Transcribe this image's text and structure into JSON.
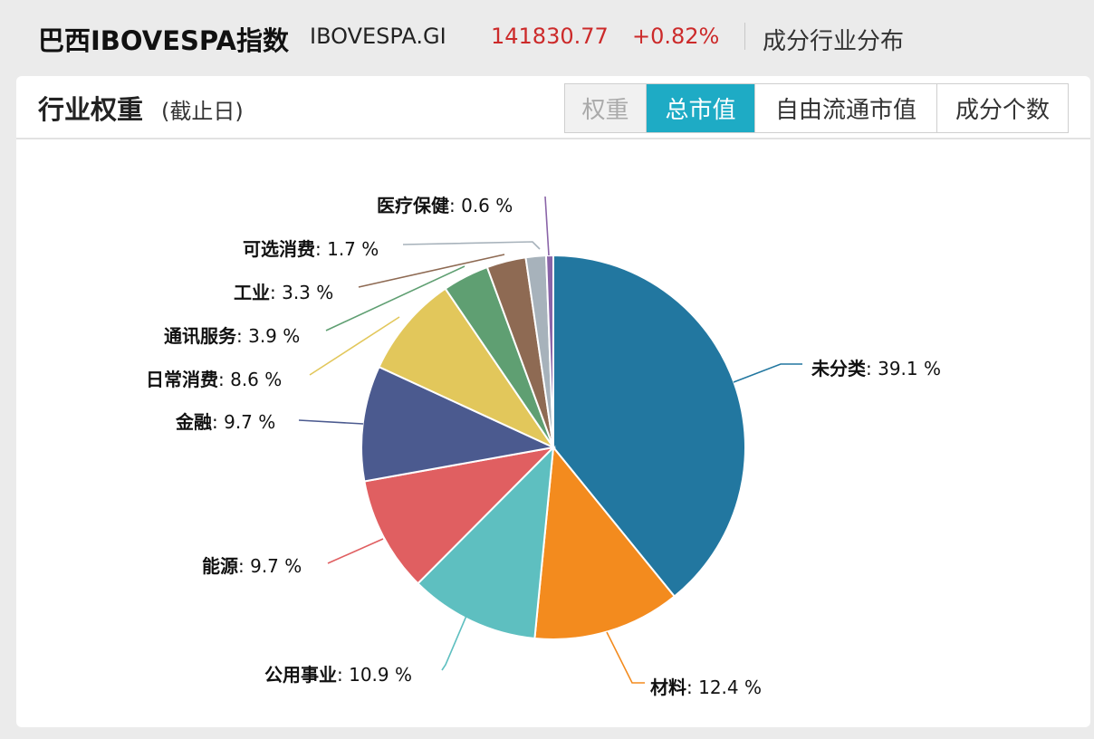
{
  "header": {
    "index_name": "巴西IBOVESPA指数",
    "index_code": "IBOVESPA.GI",
    "price": "141830.77",
    "change": "+0.82%",
    "section": "成分行业分布"
  },
  "panel": {
    "title": "行业权重",
    "subtitle": "(截止日)",
    "tabs": [
      {
        "label": "权重",
        "state": "disabled"
      },
      {
        "label": "总市值",
        "state": "active"
      },
      {
        "label": "自由流通市值",
        "state": "normal"
      },
      {
        "label": "成分个数",
        "state": "normal"
      }
    ]
  },
  "colors": {
    "up": "#cc2a2a",
    "tab_active": "#1eabc5"
  },
  "chart_data": {
    "type": "pie",
    "unit": "%",
    "slices": [
      {
        "name": "未分类",
        "value": 39.1,
        "color": "#2277a0"
      },
      {
        "name": "材料",
        "value": 12.4,
        "color": "#f38b1e"
      },
      {
        "name": "公用事业",
        "value": 10.9,
        "color": "#5ebfc0"
      },
      {
        "name": "能源",
        "value": 9.7,
        "color": "#e05f61"
      },
      {
        "name": "金融",
        "value": 9.7,
        "color": "#4b5a8f"
      },
      {
        "name": "日常消费",
        "value": 8.6,
        "color": "#e2c75b"
      },
      {
        "name": "通讯服务",
        "value": 3.9,
        "color": "#5f9f72"
      },
      {
        "name": "工业",
        "value": 3.3,
        "color": "#8e6a53"
      },
      {
        "name": "可选消费",
        "value": 1.7,
        "color": "#a7b2bb"
      },
      {
        "name": "医疗保健",
        "value": 0.6,
        "color": "#8a64a8"
      }
    ]
  }
}
